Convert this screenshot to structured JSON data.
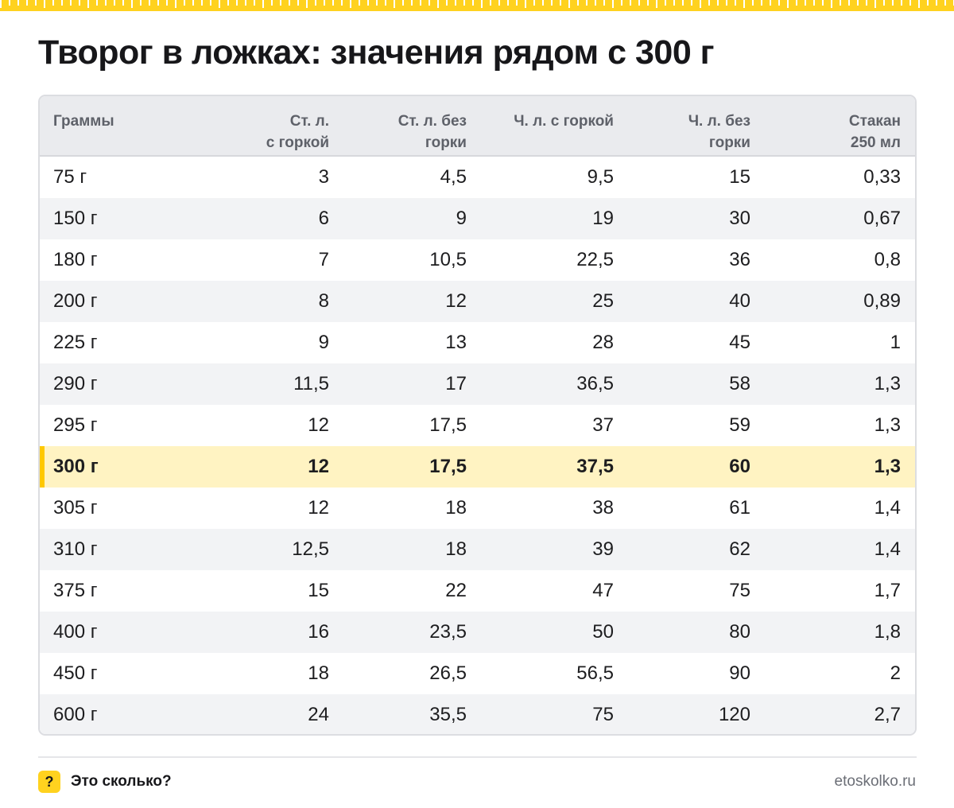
{
  "title": "Творог в ложках: значения рядом с 300 г",
  "table": {
    "headers": [
      [
        "Граммы"
      ],
      [
        "Ст. л.",
        "с горкой"
      ],
      [
        "Ст. л. без",
        "горки"
      ],
      [
        "Ч. л. с горкой"
      ],
      [
        "Ч. л. без",
        "горки"
      ],
      [
        "Стакан",
        "250 мл"
      ]
    ],
    "rows": [
      [
        "75 г",
        "3",
        "4,5",
        "9,5",
        "15",
        "0,33"
      ],
      [
        "150 г",
        "6",
        "9",
        "19",
        "30",
        "0,67"
      ],
      [
        "180 г",
        "7",
        "10,5",
        "22,5",
        "36",
        "0,8"
      ],
      [
        "200 г",
        "8",
        "12",
        "25",
        "40",
        "0,89"
      ],
      [
        "225 г",
        "9",
        "13",
        "28",
        "45",
        "1"
      ],
      [
        "290 г",
        "11,5",
        "17",
        "36,5",
        "58",
        "1,3"
      ],
      [
        "295 г",
        "12",
        "17,5",
        "37",
        "59",
        "1,3"
      ],
      [
        "300 г",
        "12",
        "17,5",
        "37,5",
        "60",
        "1,3"
      ],
      [
        "305 г",
        "12",
        "18",
        "38",
        "61",
        "1,4"
      ],
      [
        "310 г",
        "12,5",
        "18",
        "39",
        "62",
        "1,4"
      ],
      [
        "375 г",
        "15",
        "22",
        "47",
        "75",
        "1,7"
      ],
      [
        "400 г",
        "16",
        "23,5",
        "50",
        "80",
        "1,8"
      ],
      [
        "450 г",
        "18",
        "26,5",
        "56,5",
        "90",
        "2"
      ],
      [
        "600 г",
        "24",
        "35,5",
        "75",
        "120",
        "2,7"
      ]
    ],
    "highlight_row": 7
  },
  "footer": {
    "badge": "?",
    "brand": "Это сколько?",
    "site": "etoskolko.ru"
  },
  "colors": {
    "accent": "#ffd21f",
    "highlight": "#fff3c2",
    "highlight_bar": "#ffc800"
  }
}
